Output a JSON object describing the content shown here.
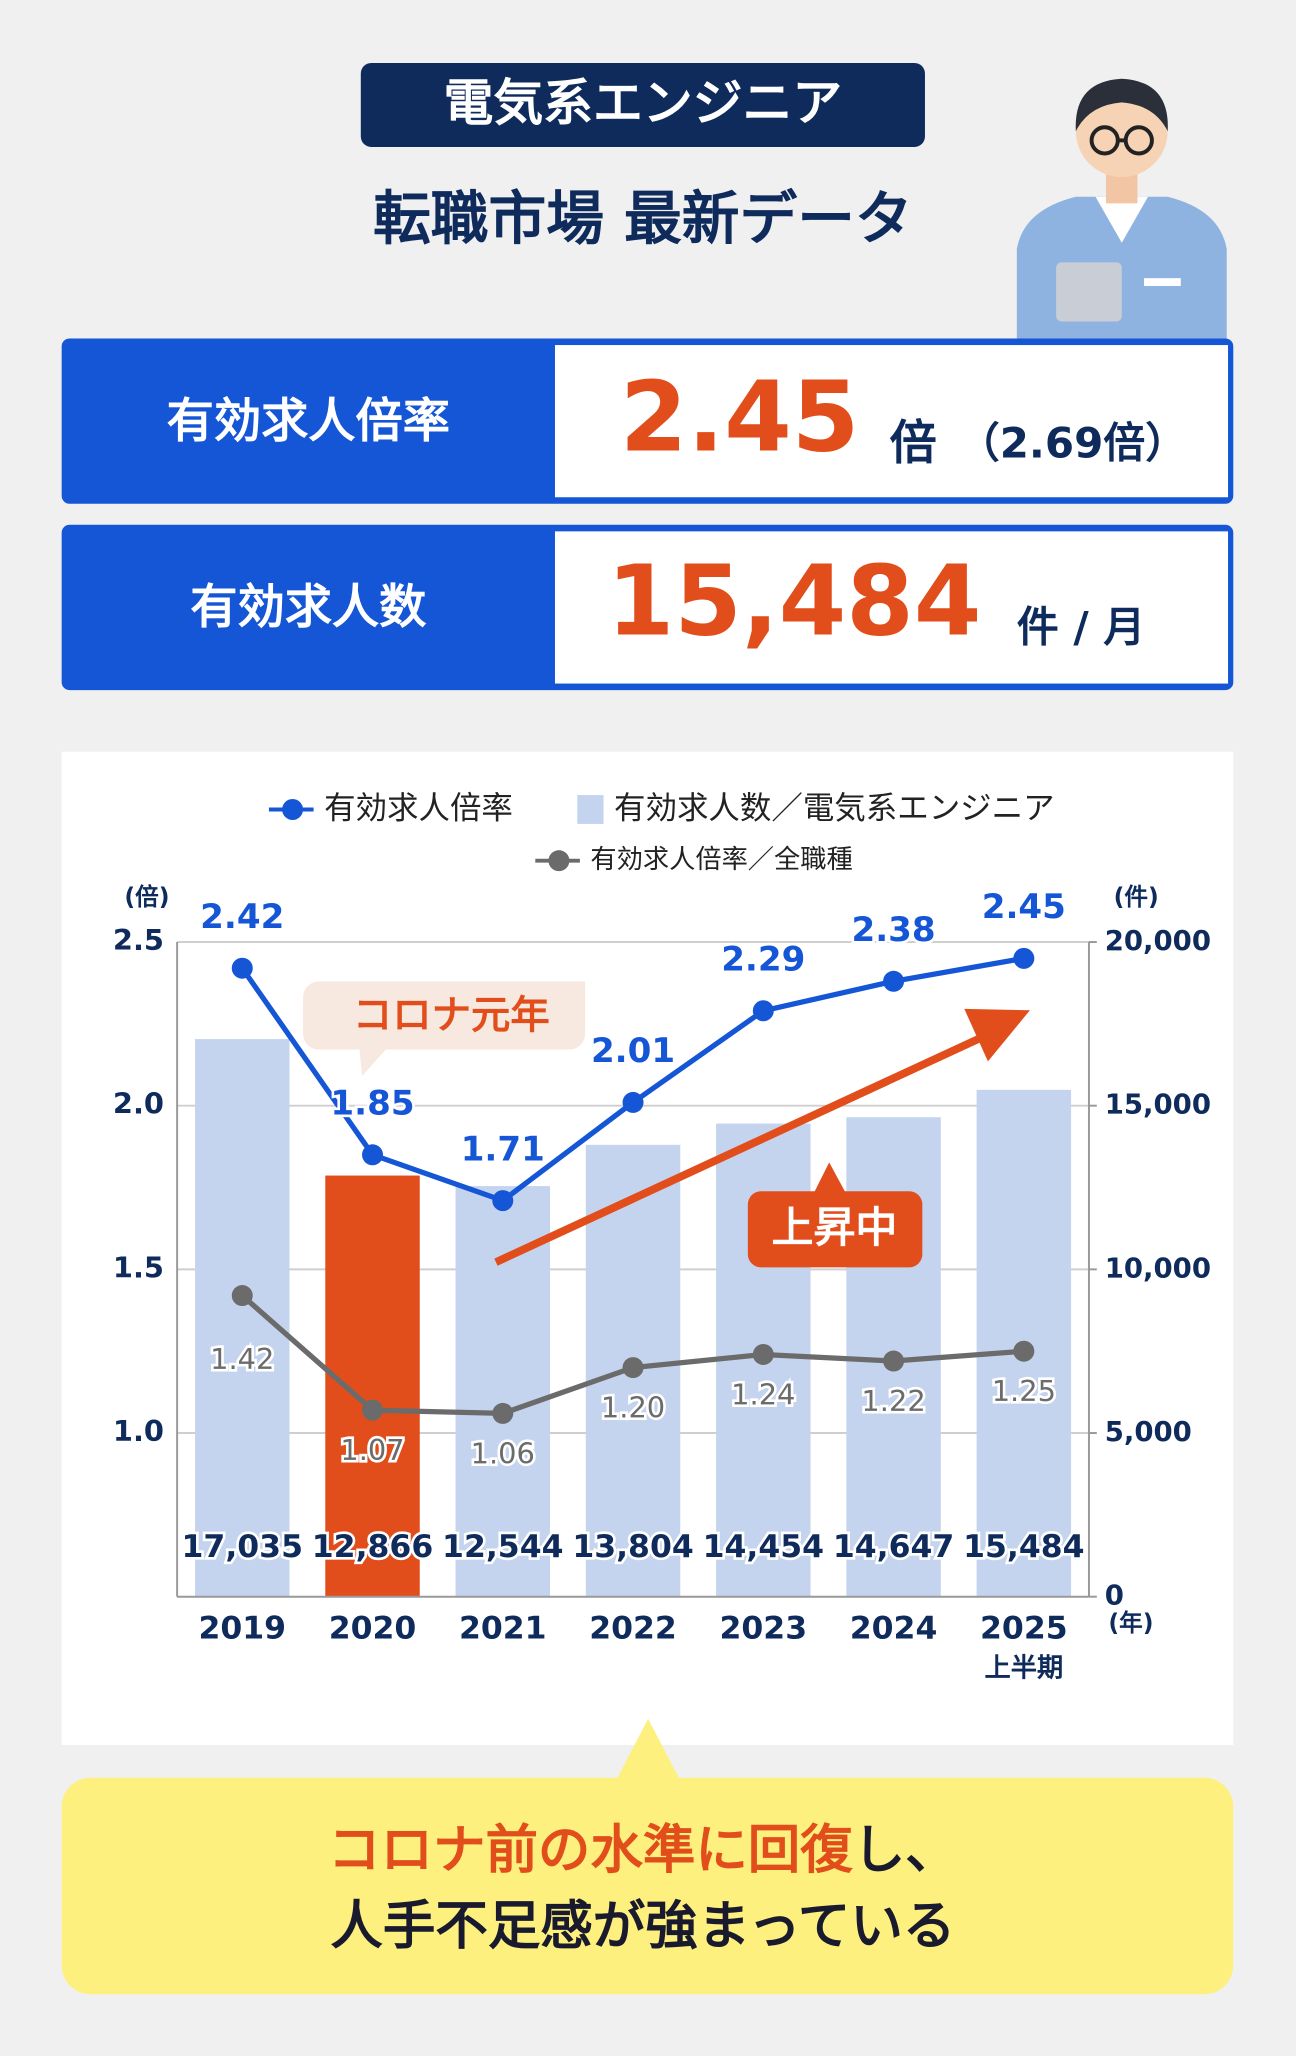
{
  "header": {
    "badge": "電気系エンジニア",
    "title": "転職市場 最新データ"
  },
  "stats": [
    {
      "label": "有効求人倍率",
      "value": "2.45",
      "unit": "倍",
      "note": "（2.69倍）"
    },
    {
      "label": "有効求人数",
      "value": "15,484",
      "unit": "件 / 月"
    }
  ],
  "chart_data": {
    "type": "combo",
    "categories": [
      "2019",
      "2020",
      "2021",
      "2022",
      "2023",
      "2024",
      "2025"
    ],
    "x_note": "上半期",
    "x_label": "(年)",
    "y_label": "(倍)",
    "y2_label": "(件)",
    "ylim": [
      0.5,
      2.5
    ],
    "yticks": [
      {
        "value": 1,
        "label": "1.0"
      },
      1.5,
      {
        "value": 2,
        "label": "2.0"
      },
      2.5
    ],
    "y2lim": [
      0,
      20000
    ],
    "y2ticks": [
      0,
      {
        "value": 5000,
        "label": "5,000"
      },
      {
        "value": 10000,
        "label": "10,000"
      },
      {
        "value": 15000,
        "label": "15,000"
      },
      {
        "value": 20000,
        "label": "20,000"
      }
    ],
    "grid": true,
    "series": [
      {
        "name": "有効求人倍率",
        "type": "line",
        "color": "#1456d6",
        "values": [
          2.42,
          1.85,
          1.71,
          2.01,
          2.29,
          2.38,
          2.45
        ]
      },
      {
        "name": "有効求人数／電気系エンジニア",
        "type": "bar",
        "axis": "y2",
        "color": "#c5d4ee",
        "colors": [
          "#c5d4ee",
          "#e24e1b",
          "#c5d4ee",
          "#c5d4ee",
          "#c5d4ee",
          "#c5d4ee",
          "#c5d4ee"
        ],
        "values": [
          17035,
          12866,
          12544,
          13804,
          14454,
          14647,
          15484
        ],
        "value_labels": [
          "17,035",
          "12,866",
          "12,544",
          "13,804",
          "14,454",
          "14,647",
          "15,484"
        ]
      },
      {
        "name": "有効求人倍率／全職種",
        "type": "line",
        "color": "#6b6b6b",
        "values": [
          1.42,
          1.07,
          1.06,
          1.2,
          1.24,
          1.22,
          1.25
        ],
        "value_labels": [
          "1.42",
          "1.07",
          "1.06",
          "1.20",
          "1.24",
          "1.22",
          "1.25"
        ]
      }
    ],
    "annotations": [
      "コロナ元年",
      "上昇中"
    ]
  },
  "footer": {
    "highlight": "コロナ前の水準に回復",
    "rest": "し、",
    "line2": "人手不足感が強まっている"
  }
}
